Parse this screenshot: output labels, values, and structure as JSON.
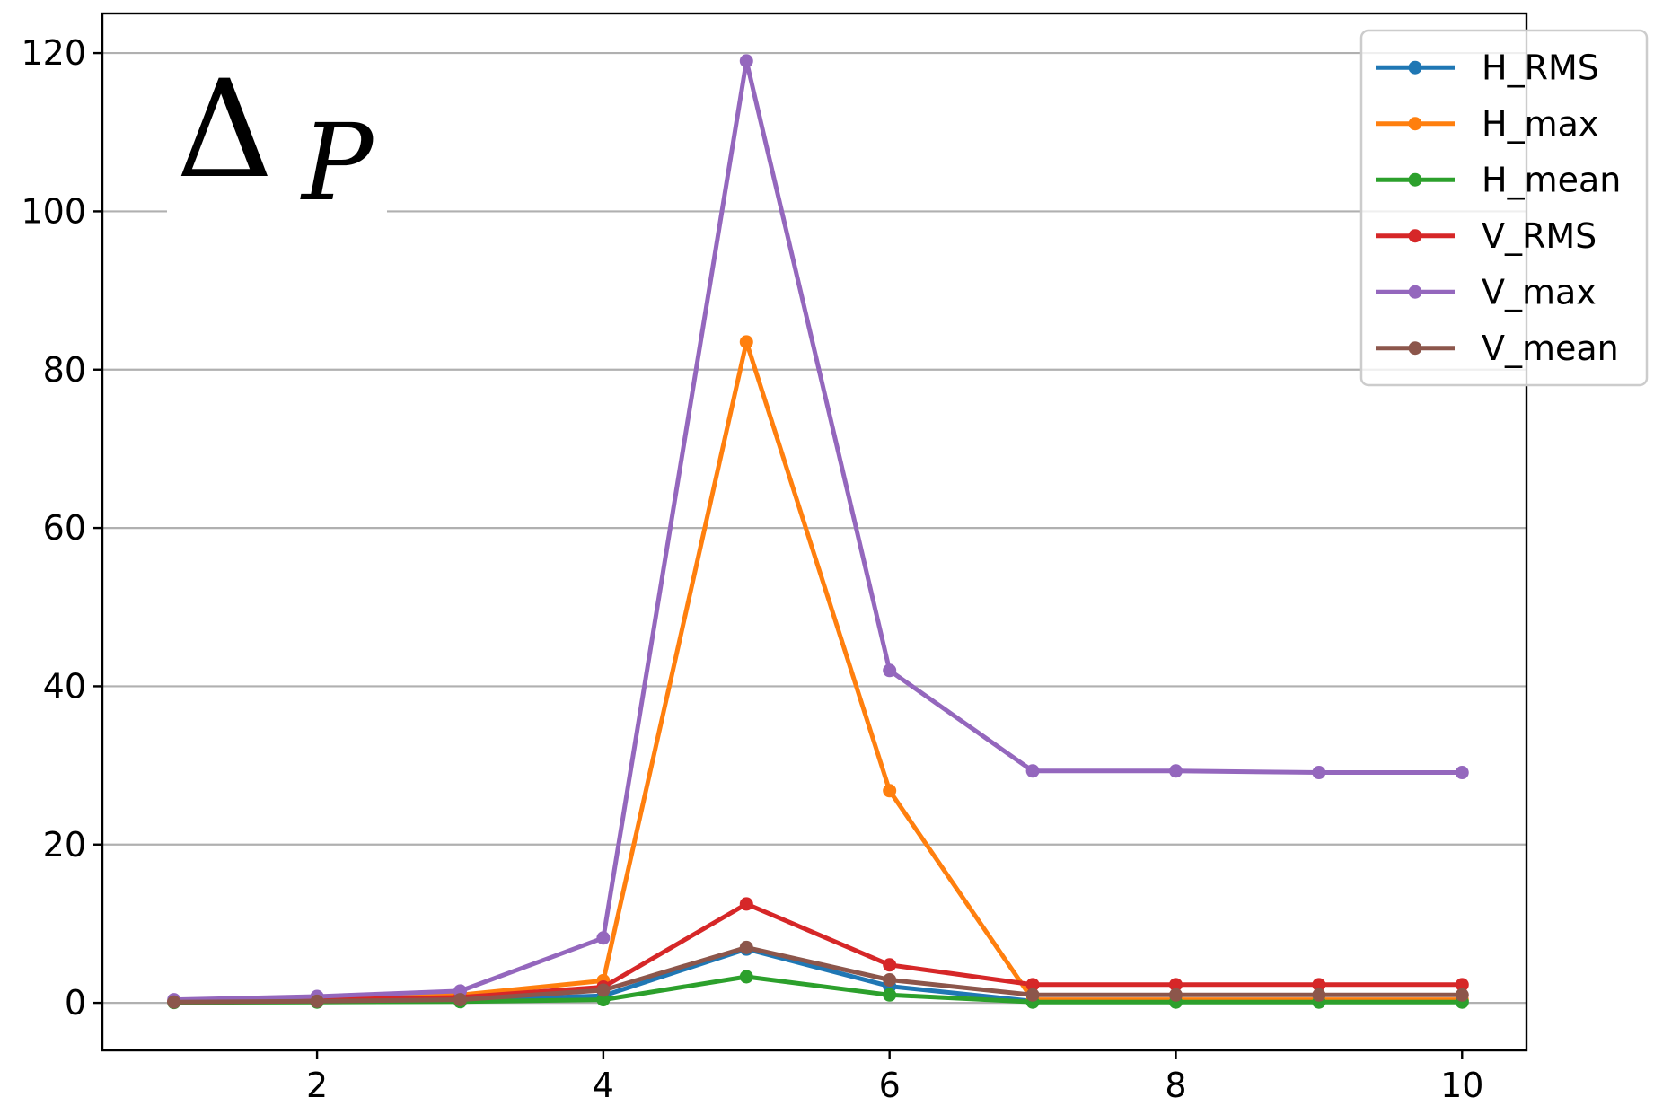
{
  "chart_data": {
    "type": "line",
    "annotation": {
      "symbol": "Δ",
      "subscript": "P"
    },
    "x": [
      1,
      2,
      3,
      4,
      5,
      6,
      7,
      8,
      9,
      10
    ],
    "xlim": [
      0.5,
      10.45
    ],
    "ylim": [
      -6,
      125
    ],
    "xticks": [
      2,
      4,
      6,
      8,
      10
    ],
    "yticks": [
      0,
      20,
      40,
      60,
      80,
      100,
      120
    ],
    "grid": "horizontal",
    "legend_position": "top-right",
    "series": [
      {
        "name": "H_RMS",
        "color": "#1f77b4",
        "values": [
          0.1,
          0.2,
          0.3,
          0.9,
          6.8,
          2.1,
          0.2,
          0.2,
          0.2,
          0.2
        ]
      },
      {
        "name": "H_max",
        "color": "#ff7f0e",
        "values": [
          0.2,
          0.4,
          1.0,
          2.8,
          83.5,
          26.8,
          0.4,
          0.4,
          0.4,
          0.4
        ]
      },
      {
        "name": "H_mean",
        "color": "#2ca02c",
        "values": [
          0.05,
          0.1,
          0.15,
          0.4,
          3.3,
          1.0,
          0.1,
          0.1,
          0.1,
          0.1
        ]
      },
      {
        "name": "V_RMS",
        "color": "#d62728",
        "values": [
          0.2,
          0.4,
          0.7,
          2.0,
          12.5,
          4.8,
          2.3,
          2.3,
          2.3,
          2.3
        ]
      },
      {
        "name": "V_max",
        "color": "#9467bd",
        "values": [
          0.4,
          0.8,
          1.5,
          8.2,
          119.0,
          42.0,
          29.3,
          29.3,
          29.1,
          29.1
        ]
      },
      {
        "name": "V_mean",
        "color": "#8c564b",
        "values": [
          0.1,
          0.2,
          0.4,
          1.6,
          7.0,
          2.9,
          1.0,
          1.0,
          1.0,
          1.0
        ]
      }
    ]
  }
}
